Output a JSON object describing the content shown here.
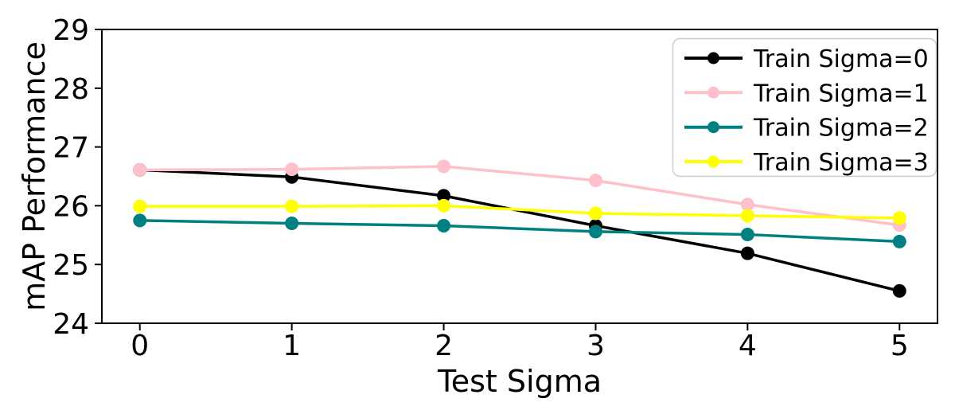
{
  "chart_data": {
    "type": "line",
    "title": "",
    "xlabel": "Test Sigma",
    "ylabel": "mAP Performance",
    "x": [
      0,
      1,
      2,
      3,
      4,
      5
    ],
    "xticks": [
      0,
      1,
      2,
      3,
      4,
      5
    ],
    "yticks": [
      24,
      25,
      26,
      27,
      28,
      29
    ],
    "xlim": [
      -0.25,
      5.25
    ],
    "ylim": [
      24,
      29
    ],
    "grid": false,
    "legend_position": "upper right",
    "series": [
      {
        "name": "Train Sigma=0",
        "color": "#000000",
        "values": [
          26.61,
          26.49,
          26.17,
          25.66,
          25.19,
          24.55
        ]
      },
      {
        "name": "Train Sigma=1",
        "color": "#ffc0cb",
        "values": [
          26.61,
          26.62,
          26.67,
          26.43,
          26.02,
          25.67
        ]
      },
      {
        "name": "Train Sigma=2",
        "color": "#008080",
        "values": [
          25.75,
          25.7,
          25.66,
          25.56,
          25.51,
          25.39
        ]
      },
      {
        "name": "Train Sigma=3",
        "color": "#ffff00",
        "values": [
          25.99,
          25.99,
          26.0,
          25.87,
          25.83,
          25.79
        ]
      }
    ],
    "colors": {
      "axis": "#000000",
      "text": "#000000",
      "legend_border": "#cccccc",
      "legend_background": "#ffffff",
      "background": "#ffffff"
    }
  }
}
